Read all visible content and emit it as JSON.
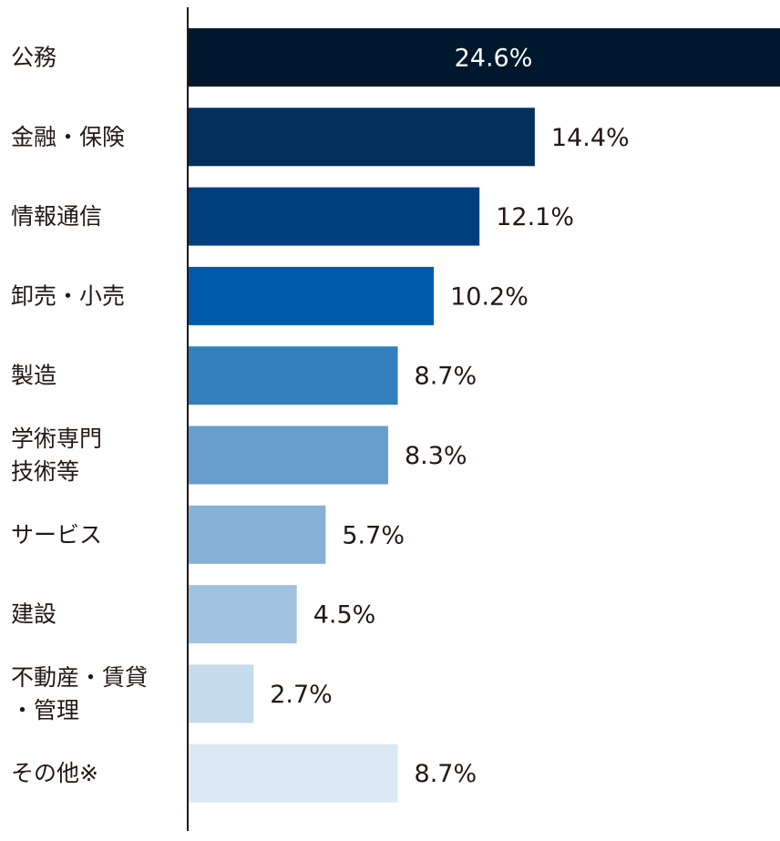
{
  "chart_data": {
    "type": "bar",
    "orientation": "horizontal",
    "categories": [
      [
        "公務"
      ],
      [
        "金融・保険"
      ],
      [
        "情報通信"
      ],
      [
        "卸売・小売"
      ],
      [
        "製造"
      ],
      [
        "学術専門",
        "技術等"
      ],
      [
        "サービス"
      ],
      [
        "建設"
      ],
      [
        "不動産・賃貸",
        "・管理"
      ],
      [
        "その他※"
      ]
    ],
    "values": [
      24.6,
      14.4,
      12.1,
      10.2,
      8.7,
      8.3,
      5.7,
      4.5,
      2.7,
      8.7
    ],
    "value_labels": [
      "24.6%",
      "14.4%",
      "12.1%",
      "10.2%",
      "8.7%",
      "8.3%",
      "5.7%",
      "4.5%",
      "2.7%",
      "8.7%"
    ],
    "value_max": 24.6,
    "first_label_inside_bar": true,
    "colors": [
      "#00182d",
      "#002f5c",
      "#00407f",
      "#005aab",
      "#337fbd",
      "#669fcd",
      "#85b1d7",
      "#a1c3e1",
      "#c4daed",
      "#dce9f4"
    ],
    "title": "",
    "xlabel": "",
    "ylabel": "",
    "grid": false,
    "legend": "none"
  }
}
